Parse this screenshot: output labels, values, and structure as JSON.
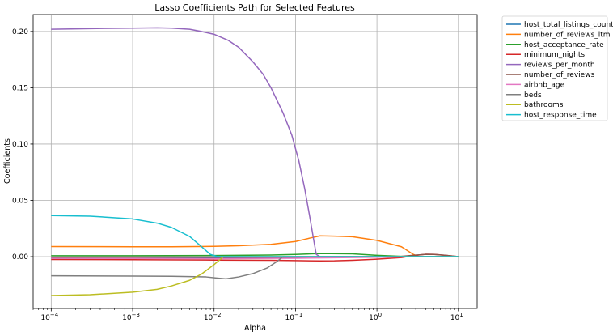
{
  "chart_data": {
    "type": "line",
    "title": "Lasso Coefficients Path for Selected Features",
    "xlabel": "Alpha",
    "ylabel": "Coefficients",
    "xscale": "log",
    "xlim": [
      6e-05,
      17
    ],
    "ylim": [
      -0.046,
      0.215
    ],
    "grid": true,
    "legend_position": "outside-top-right",
    "x_ticks": [
      {
        "value": 0.0001,
        "base": "10",
        "exp": "−4"
      },
      {
        "value": 0.001,
        "base": "10",
        "exp": "−3"
      },
      {
        "value": 0.01,
        "base": "10",
        "exp": "−2"
      },
      {
        "value": 0.1,
        "base": "10",
        "exp": "−1"
      },
      {
        "value": 1,
        "base": "10",
        "exp": "0"
      },
      {
        "value": 10,
        "base": "10",
        "exp": "1"
      }
    ],
    "y_ticks": [
      {
        "value": 0.0,
        "label": "0.00"
      },
      {
        "value": 0.05,
        "label": "0.05"
      },
      {
        "value": 0.1,
        "label": "0.10"
      },
      {
        "value": 0.15,
        "label": "0.15"
      },
      {
        "value": 0.2,
        "label": "0.20"
      }
    ],
    "series": [
      {
        "name": "host_total_listings_count",
        "color": "#1f77b4",
        "points": [
          [
            0.0001,
            -0.0015
          ],
          [
            0.001,
            -0.0015
          ],
          [
            0.01,
            -0.0012
          ],
          [
            0.1,
            -0.0008
          ],
          [
            0.5,
            -0.0004
          ],
          [
            1,
            -0.0002
          ],
          [
            2,
            0
          ],
          [
            10,
            0
          ]
        ]
      },
      {
        "name": "number_of_reviews_ltm",
        "color": "#ff7f0e",
        "points": [
          [
            0.0001,
            0.009
          ],
          [
            0.001,
            0.0088
          ],
          [
            0.003,
            0.0088
          ],
          [
            0.01,
            0.0092
          ],
          [
            0.02,
            0.0097
          ],
          [
            0.05,
            0.011
          ],
          [
            0.1,
            0.0135
          ],
          [
            0.15,
            0.0165
          ],
          [
            0.2,
            0.0185
          ],
          [
            0.3,
            0.0183
          ],
          [
            0.5,
            0.0177
          ],
          [
            1,
            0.0145
          ],
          [
            2,
            0.0088
          ],
          [
            2.8,
            0.002
          ],
          [
            3.3,
            0
          ],
          [
            10,
            0
          ]
        ]
      },
      {
        "name": "host_acceptance_rate",
        "color": "#2ca02c",
        "points": [
          [
            0.0001,
            0.0008
          ],
          [
            0.001,
            0.0008
          ],
          [
            0.01,
            0.001
          ],
          [
            0.05,
            0.0015
          ],
          [
            0.1,
            0.002
          ],
          [
            0.2,
            0.0028
          ],
          [
            0.5,
            0.0025
          ],
          [
            1,
            0.0012
          ],
          [
            2,
            0.0003
          ],
          [
            3,
            0
          ],
          [
            10,
            0
          ]
        ]
      },
      {
        "name": "minimum_nights",
        "color": "#d62728",
        "points": [
          [
            0.0001,
            -0.0025
          ],
          [
            0.001,
            -0.0027
          ],
          [
            0.01,
            -0.003
          ],
          [
            0.05,
            -0.0032
          ],
          [
            0.1,
            -0.0035
          ],
          [
            0.2,
            -0.0038
          ],
          [
            0.3,
            -0.0037
          ],
          [
            0.5,
            -0.0032
          ],
          [
            1,
            -0.0022
          ],
          [
            2,
            -0.0008
          ],
          [
            3,
            0.0012
          ],
          [
            4,
            0.0022
          ],
          [
            5,
            0.0021
          ],
          [
            7,
            0.0012
          ],
          [
            10,
            0
          ]
        ]
      },
      {
        "name": "reviews_per_month",
        "color": "#9467bd",
        "points": [
          [
            0.0001,
            0.202
          ],
          [
            0.0003,
            0.2025
          ],
          [
            0.001,
            0.203
          ],
          [
            0.002,
            0.2032
          ],
          [
            0.003,
            0.203
          ],
          [
            0.005,
            0.202
          ],
          [
            0.007,
            0.2
          ],
          [
            0.01,
            0.1975
          ],
          [
            0.015,
            0.192
          ],
          [
            0.02,
            0.186
          ],
          [
            0.03,
            0.173
          ],
          [
            0.04,
            0.162
          ],
          [
            0.05,
            0.15
          ],
          [
            0.07,
            0.128
          ],
          [
            0.09,
            0.108
          ],
          [
            0.11,
            0.085
          ],
          [
            0.13,
            0.06
          ],
          [
            0.15,
            0.035
          ],
          [
            0.17,
            0.012
          ],
          [
            0.18,
            0.002
          ],
          [
            0.2,
            0
          ],
          [
            0.3,
            0
          ],
          [
            10,
            0
          ]
        ]
      },
      {
        "name": "number_of_reviews",
        "color": "#8c564b",
        "points": [
          [
            0.0001,
            -0.0005
          ],
          [
            0.01,
            -0.0004
          ],
          [
            0.1,
            -0.0003
          ],
          [
            1,
            -0.0001
          ],
          [
            2,
            0.0003
          ],
          [
            3,
            0.0014
          ],
          [
            4,
            0.0021
          ],
          [
            5,
            0.002
          ],
          [
            7,
            0.0012
          ],
          [
            10,
            0
          ]
        ]
      },
      {
        "name": "airbnb_age",
        "color": "#e377c2",
        "points": [
          [
            0.0001,
            -0.0015
          ],
          [
            0.001,
            -0.0016
          ],
          [
            0.01,
            -0.0018
          ],
          [
            0.1,
            -0.0014
          ],
          [
            1,
            -0.0005
          ],
          [
            3,
            0
          ],
          [
            10,
            0
          ]
        ]
      },
      {
        "name": "beds",
        "color": "#7f7f7f",
        "points": [
          [
            0.0001,
            -0.017
          ],
          [
            0.001,
            -0.0172
          ],
          [
            0.003,
            -0.0174
          ],
          [
            0.008,
            -0.018
          ],
          [
            0.011,
            -0.019
          ],
          [
            0.014,
            -0.0197
          ],
          [
            0.02,
            -0.018
          ],
          [
            0.03,
            -0.015
          ],
          [
            0.045,
            -0.01
          ],
          [
            0.06,
            -0.004
          ],
          [
            0.07,
            0
          ],
          [
            10,
            0
          ]
        ]
      },
      {
        "name": "bathrooms",
        "color": "#bcbd22",
        "points": [
          [
            0.0001,
            -0.0345
          ],
          [
            0.0003,
            -0.0338
          ],
          [
            0.001,
            -0.0315
          ],
          [
            0.002,
            -0.029
          ],
          [
            0.003,
            -0.026
          ],
          [
            0.005,
            -0.021
          ],
          [
            0.007,
            -0.0155
          ],
          [
            0.01,
            -0.007
          ],
          [
            0.013,
            0
          ],
          [
            0.015,
            0
          ],
          [
            10,
            0
          ]
        ]
      },
      {
        "name": "host_response_time",
        "color": "#17becf",
        "points": [
          [
            0.0001,
            0.0365
          ],
          [
            0.0003,
            0.036
          ],
          [
            0.001,
            0.0335
          ],
          [
            0.002,
            0.0298
          ],
          [
            0.003,
            0.026
          ],
          [
            0.005,
            0.018
          ],
          [
            0.007,
            0.009
          ],
          [
            0.009,
            0.002
          ],
          [
            0.011,
            0
          ],
          [
            10,
            0
          ]
        ]
      }
    ]
  }
}
